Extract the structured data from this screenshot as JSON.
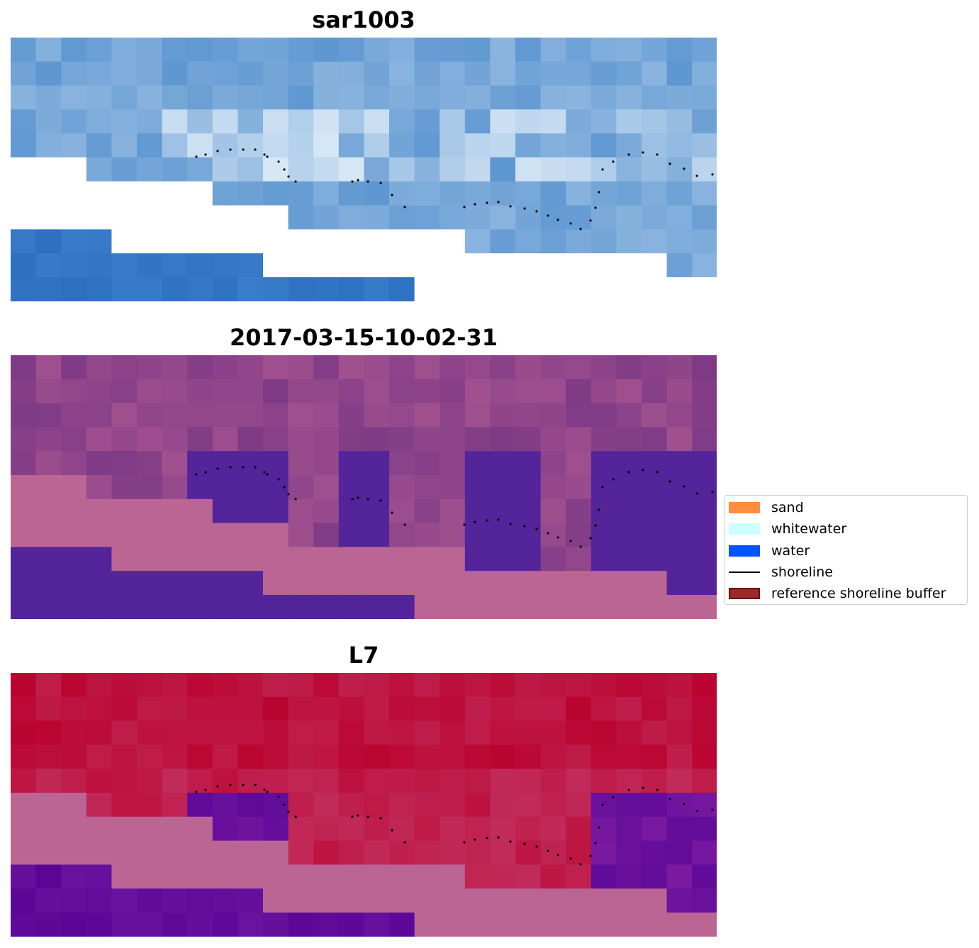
{
  "panels": [
    {
      "title": "sar1003",
      "kind": "rgb"
    },
    {
      "title": "2017-03-15-10-02-31",
      "kind": "classified"
    },
    {
      "title": "L7",
      "kind": "index"
    }
  ],
  "legend": {
    "items": [
      {
        "label": "sand",
        "color": "#ff8c3f",
        "type": "patch"
      },
      {
        "label": "whitewater",
        "color": "#ccffff",
        "type": "patch"
      },
      {
        "label": "water",
        "color": "#0055ff",
        "type": "patch"
      },
      {
        "label": "shoreline",
        "color": "#000000",
        "type": "line"
      },
      {
        "label": "reference shoreline buffer",
        "color": "#9b2a2a",
        "type": "patch",
        "edge": "#6b1212"
      }
    ]
  },
  "colors": {
    "masked_land": "#ffffff",
    "classified_land": "#bb6595",
    "classified_water": "#53249a",
    "index_land": "#bb6595",
    "index_high": "#bb0430",
    "index_water": "#5f0a9a"
  }
}
